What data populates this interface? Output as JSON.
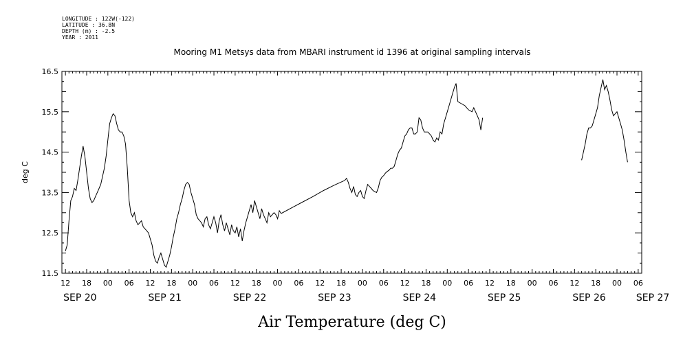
{
  "meta_lines": [
    "LONGITUDE : 122W(-122)",
    "LATITUDE : 36.8N",
    "DEPTH (m) : -2.5",
    "YEAR : 2011"
  ],
  "chart_data": {
    "type": "line",
    "title": "Mooring M1 Metsys data from MBARI instrument id 1396 at original sampling intervals",
    "xlabel": "Air Temperature (deg C)",
    "ylabel": "deg C",
    "xunit": "hours from SEP 20 00:00 (2011)",
    "xlim": [
      11,
      175
    ],
    "ylim": [
      11.5,
      16.5
    ],
    "yticks": [
      11.5,
      12.5,
      13.5,
      14.5,
      15.5,
      16.5
    ],
    "hour_ticks": [
      {
        "h": 12,
        "label": "12"
      },
      {
        "h": 18,
        "label": "18"
      },
      {
        "h": 24,
        "label": "00"
      },
      {
        "h": 30,
        "label": "06"
      },
      {
        "h": 36,
        "label": "12"
      },
      {
        "h": 42,
        "label": "18"
      },
      {
        "h": 48,
        "label": "00"
      },
      {
        "h": 54,
        "label": "06"
      },
      {
        "h": 60,
        "label": "12"
      },
      {
        "h": 66,
        "label": "18"
      },
      {
        "h": 72,
        "label": "00"
      },
      {
        "h": 78,
        "label": "06"
      },
      {
        "h": 84,
        "label": "12"
      },
      {
        "h": 90,
        "label": "18"
      },
      {
        "h": 96,
        "label": "00"
      },
      {
        "h": 102,
        "label": "06"
      },
      {
        "h": 108,
        "label": "12"
      },
      {
        "h": 114,
        "label": "18"
      },
      {
        "h": 120,
        "label": "00"
      },
      {
        "h": 126,
        "label": "06"
      },
      {
        "h": 132,
        "label": "12"
      },
      {
        "h": 138,
        "label": "18"
      },
      {
        "h": 144,
        "label": "00"
      },
      {
        "h": 150,
        "label": "06"
      },
      {
        "h": 156,
        "label": "12"
      },
      {
        "h": 162,
        "label": "18"
      },
      {
        "h": 168,
        "label": "00"
      },
      {
        "h": 174,
        "label": "06"
      }
    ],
    "day_labels": [
      {
        "h": 12,
        "label": "SEP 20"
      },
      {
        "h": 36,
        "label": "SEP 21"
      },
      {
        "h": 60,
        "label": "SEP 22"
      },
      {
        "h": 84,
        "label": "SEP 23"
      },
      {
        "h": 108,
        "label": "SEP 24"
      },
      {
        "h": 132,
        "label": "SEP 25"
      },
      {
        "h": 156,
        "label": "SEP 26"
      },
      {
        "h": 174,
        "label": "SEP 27"
      }
    ],
    "series": [
      {
        "segments": [
          [
            [
              12.0,
              12.05
            ],
            [
              12.5,
              12.2
            ],
            [
              13.0,
              12.8
            ],
            [
              13.5,
              13.3
            ],
            [
              14.0,
              13.4
            ],
            [
              14.5,
              13.6
            ],
            [
              15.0,
              13.55
            ],
            [
              15.5,
              13.8
            ],
            [
              16.0,
              14.1
            ],
            [
              16.5,
              14.4
            ],
            [
              17.0,
              14.65
            ],
            [
              17.5,
              14.4
            ],
            [
              18.0,
              14.0
            ],
            [
              18.5,
              13.6
            ],
            [
              19.0,
              13.35
            ],
            [
              19.5,
              13.25
            ],
            [
              20.0,
              13.3
            ],
            [
              20.5,
              13.4
            ],
            [
              21.0,
              13.5
            ],
            [
              21.5,
              13.6
            ],
            [
              22.0,
              13.7
            ],
            [
              22.5,
              13.9
            ],
            [
              23.0,
              14.1
            ],
            [
              23.5,
              14.4
            ],
            [
              24.0,
              14.8
            ],
            [
              24.5,
              15.2
            ],
            [
              25.0,
              15.35
            ],
            [
              25.5,
              15.45
            ],
            [
              26.0,
              15.4
            ],
            [
              26.5,
              15.2
            ],
            [
              27.0,
              15.05
            ],
            [
              27.5,
              15.0
            ],
            [
              28.0,
              15.0
            ],
            [
              28.5,
              14.9
            ],
            [
              29.0,
              14.7
            ],
            [
              29.5,
              14.1
            ],
            [
              30.0,
              13.3
            ],
            [
              30.5,
              13.0
            ],
            [
              31.0,
              12.9
            ],
            [
              31.5,
              13.0
            ],
            [
              32.0,
              12.8
            ],
            [
              32.5,
              12.7
            ],
            [
              33.0,
              12.75
            ],
            [
              33.5,
              12.8
            ],
            [
              34.0,
              12.65
            ],
            [
              34.5,
              12.6
            ],
            [
              35.0,
              12.55
            ],
            [
              35.5,
              12.5
            ],
            [
              36.0,
              12.35
            ],
            [
              36.5,
              12.2
            ],
            [
              37.0,
              11.95
            ],
            [
              37.5,
              11.8
            ],
            [
              38.0,
              11.75
            ],
            [
              38.5,
              11.9
            ],
            [
              39.0,
              12.0
            ],
            [
              39.5,
              11.85
            ],
            [
              40.0,
              11.7
            ],
            [
              40.5,
              11.65
            ],
            [
              41.0,
              11.8
            ],
            [
              41.5,
              11.95
            ],
            [
              42.0,
              12.15
            ],
            [
              42.5,
              12.4
            ],
            [
              43.0,
              12.6
            ],
            [
              43.5,
              12.85
            ],
            [
              44.0,
              13.0
            ],
            [
              44.5,
              13.2
            ],
            [
              45.0,
              13.35
            ],
            [
              45.5,
              13.55
            ],
            [
              46.0,
              13.7
            ],
            [
              46.5,
              13.75
            ],
            [
              47.0,
              13.7
            ],
            [
              47.5,
              13.5
            ],
            [
              48.0,
              13.35
            ],
            [
              48.5,
              13.2
            ],
            [
              49.0,
              12.95
            ],
            [
              49.5,
              12.85
            ],
            [
              50.0,
              12.8
            ],
            [
              50.5,
              12.75
            ],
            [
              51.0,
              12.65
            ],
            [
              51.5,
              12.85
            ],
            [
              52.0,
              12.9
            ],
            [
              52.5,
              12.7
            ],
            [
              53.0,
              12.6
            ],
            [
              53.5,
              12.75
            ],
            [
              54.0,
              12.9
            ],
            [
              54.5,
              12.75
            ],
            [
              55.0,
              12.5
            ],
            [
              55.5,
              12.8
            ],
            [
              56.0,
              12.95
            ],
            [
              56.5,
              12.7
            ],
            [
              57.0,
              12.55
            ],
            [
              57.5,
              12.75
            ],
            [
              58.0,
              12.6
            ],
            [
              58.5,
              12.45
            ],
            [
              59.0,
              12.7
            ],
            [
              59.5,
              12.55
            ],
            [
              60.0,
              12.5
            ],
            [
              60.5,
              12.65
            ],
            [
              61.0,
              12.4
            ],
            [
              61.5,
              12.6
            ],
            [
              62.0,
              12.3
            ],
            [
              62.5,
              12.55
            ],
            [
              63.0,
              12.75
            ],
            [
              63.5,
              12.9
            ],
            [
              64.0,
              13.05
            ],
            [
              64.5,
              13.2
            ],
            [
              65.0,
              13.0
            ],
            [
              65.5,
              13.3
            ],
            [
              66.0,
              13.15
            ],
            [
              66.5,
              13.0
            ],
            [
              67.0,
              12.85
            ],
            [
              67.5,
              13.1
            ],
            [
              68.0,
              12.95
            ],
            [
              68.5,
              12.85
            ],
            [
              69.0,
              12.75
            ],
            [
              69.5,
              13.0
            ],
            [
              70.0,
              12.9
            ],
            [
              70.5,
              12.95
            ],
            [
              71.0,
              13.0
            ],
            [
              71.5,
              12.95
            ],
            [
              72.0,
              12.85
            ],
            [
              72.5,
              13.05
            ],
            [
              73.0,
              12.98
            ]
          ],
          [
            [
              73.0,
              12.98
            ],
            [
              76.0,
              13.12
            ],
            [
              79.0,
              13.26
            ],
            [
              82.0,
              13.4
            ],
            [
              85.0,
              13.55
            ],
            [
              88.0,
              13.68
            ],
            [
              91.0,
              13.8
            ]
          ],
          [
            [
              91.0,
              13.8
            ],
            [
              91.5,
              13.85
            ],
            [
              92.0,
              13.75
            ],
            [
              92.5,
              13.6
            ],
            [
              93.0,
              13.5
            ],
            [
              93.5,
              13.65
            ],
            [
              94.0,
              13.45
            ],
            [
              94.5,
              13.4
            ],
            [
              95.0,
              13.5
            ],
            [
              95.5,
              13.55
            ],
            [
              96.0,
              13.4
            ],
            [
              96.5,
              13.35
            ],
            [
              97.0,
              13.55
            ],
            [
              97.5,
              13.7
            ],
            [
              98.0,
              13.65
            ],
            [
              98.5,
              13.6
            ],
            [
              99.0,
              13.55
            ],
            [
              99.5,
              13.52
            ],
            [
              100.0,
              13.5
            ],
            [
              100.5,
              13.62
            ],
            [
              101.0,
              13.8
            ],
            [
              101.5,
              13.88
            ],
            [
              102.0,
              13.92
            ],
            [
              102.5,
              13.98
            ],
            [
              103.0,
              14.02
            ],
            [
              103.5,
              14.05
            ],
            [
              104.0,
              14.1
            ],
            [
              104.5,
              14.1
            ],
            [
              105.0,
              14.15
            ],
            [
              105.5,
              14.3
            ],
            [
              106.0,
              14.45
            ],
            [
              106.5,
              14.55
            ],
            [
              107.0,
              14.6
            ],
            [
              107.5,
              14.75
            ],
            [
              108.0,
              14.9
            ],
            [
              108.5,
              14.95
            ],
            [
              109.0,
              15.05
            ],
            [
              109.5,
              15.1
            ],
            [
              110.0,
              15.1
            ],
            [
              110.5,
              14.95
            ],
            [
              111.0,
              14.95
            ],
            [
              111.5,
              15.0
            ],
            [
              112.0,
              15.35
            ],
            [
              112.5,
              15.3
            ],
            [
              113.0,
              15.1
            ],
            [
              113.5,
              15.0
            ],
            [
              114.0,
              15.0
            ],
            [
              114.5,
              15.0
            ],
            [
              115.0,
              14.95
            ],
            [
              115.5,
              14.9
            ],
            [
              116.0,
              14.8
            ],
            [
              116.5,
              14.75
            ],
            [
              117.0,
              14.85
            ],
            [
              117.5,
              14.8
            ],
            [
              118.0,
              15.0
            ],
            [
              118.5,
              14.95
            ],
            [
              119.0,
              15.2
            ],
            [
              119.5,
              15.35
            ],
            [
              120.0,
              15.5
            ],
            [
              120.5,
              15.65
            ],
            [
              121.0,
              15.8
            ],
            [
              121.5,
              15.95
            ],
            [
              122.0,
              16.1
            ],
            [
              122.5,
              16.2
            ],
            [
              123.0,
              15.75
            ],
            [
              124.0,
              15.7
            ],
            [
              125.0,
              15.65
            ],
            [
              126.0,
              15.55
            ],
            [
              127.0,
              15.5
            ],
            [
              127.5,
              15.6
            ],
            [
              128.0,
              15.5
            ],
            [
              128.5,
              15.4
            ],
            [
              129.0,
              15.3
            ],
            [
              129.5,
              15.05
            ],
            [
              130.0,
              15.35
            ]
          ],
          [
            [
              158.0,
              14.3
            ],
            [
              158.5,
              14.5
            ],
            [
              159.0,
              14.7
            ],
            [
              159.5,
              14.95
            ],
            [
              160.0,
              15.1
            ],
            [
              160.5,
              15.1
            ],
            [
              161.0,
              15.15
            ],
            [
              161.5,
              15.3
            ],
            [
              162.0,
              15.45
            ],
            [
              162.5,
              15.6
            ],
            [
              163.0,
              15.9
            ],
            [
              163.5,
              16.1
            ],
            [
              164.0,
              16.3
            ],
            [
              164.5,
              16.05
            ],
            [
              165.0,
              16.15
            ],
            [
              165.5,
              16.0
            ],
            [
              166.0,
              15.8
            ],
            [
              166.5,
              15.55
            ],
            [
              167.0,
              15.4
            ],
            [
              167.5,
              15.45
            ],
            [
              168.0,
              15.5
            ],
            [
              168.5,
              15.35
            ],
            [
              169.0,
              15.2
            ],
            [
              169.5,
              15.05
            ],
            [
              170.0,
              14.8
            ],
            [
              170.5,
              14.5
            ],
            [
              171.0,
              14.25
            ]
          ]
        ]
      }
    ]
  }
}
